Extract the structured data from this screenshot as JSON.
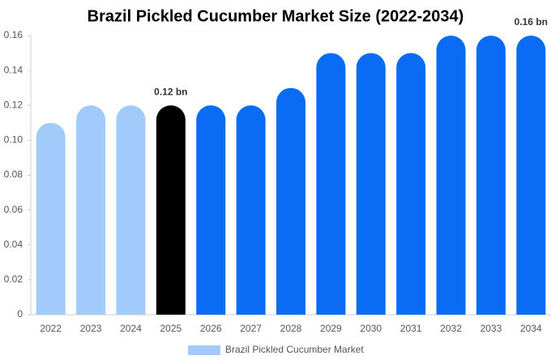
{
  "chart_data": {
    "type": "bar",
    "title": "Brazil Pickled Cucumber Market Size (2022-2034)",
    "categories": [
      "2022",
      "2023",
      "2024",
      "2025",
      "2026",
      "2027",
      "2028",
      "2029",
      "2030",
      "2031",
      "2032",
      "2033",
      "2034"
    ],
    "series": [
      {
        "name": "Brazil Pickled Cucumber Market",
        "color": "#a0cbfa",
        "values": [
          0.11,
          0.12,
          0.12,
          0.12,
          0.12,
          0.12,
          0.13,
          0.15,
          0.15,
          0.15,
          0.16,
          0.16,
          0.16
        ],
        "colors": [
          "#a0cbfa",
          "#a0cbfa",
          "#a0cbfa",
          "#000000",
          "#0a6cf5",
          "#0a6cf5",
          "#0a6cf5",
          "#0a6cf5",
          "#0a6cf5",
          "#0a6cf5",
          "#0a6cf5",
          "#0a6cf5",
          "#0a6cf5"
        ],
        "value_labels": [
          null,
          null,
          null,
          "0.12 bn",
          null,
          null,
          null,
          null,
          null,
          null,
          null,
          null,
          "0.16 bn"
        ]
      }
    ],
    "ylim": [
      0,
      0.16
    ],
    "yticks": [
      0,
      0.02,
      0.04,
      0.06,
      0.08,
      {
        "value": 0.1,
        "label": "0.10"
      },
      0.12,
      0.14,
      0.16
    ],
    "grid": false,
    "legend": "bottom"
  }
}
